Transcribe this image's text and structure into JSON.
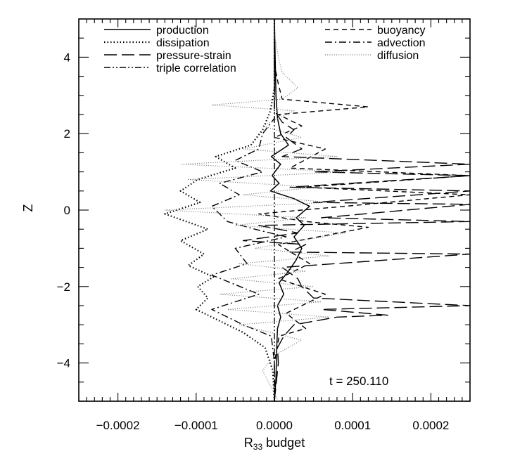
{
  "chart_data": {
    "type": "line",
    "title": "",
    "xlabel": "R",
    "xlabel_subscript": "33",
    "xlabel_suffix": " budget",
    "ylabel": "Z",
    "xlim": [
      -0.00025,
      0.00025
    ],
    "ylim": [
      -5,
      5
    ],
    "xticks": [
      -0.0002,
      -0.0001,
      0.0,
      0.0001,
      0.0002
    ],
    "xtick_labels": [
      "−0.0002",
      "−0.0001",
      "0.0000",
      "0.0001",
      "0.0002"
    ],
    "yticks": [
      -4,
      -2,
      0,
      2,
      4
    ],
    "ytick_labels": [
      "−4",
      "−2",
      "0",
      "2",
      "4"
    ],
    "grid": false,
    "legend_placement": "top",
    "annotation": "t = 250.110",
    "series": [
      {
        "name": "production",
        "dash": "solid",
        "points": [
          [
            0.0,
            -5.0
          ],
          [
            2e-06,
            -4.4
          ],
          [
            3e-06,
            -3.6
          ],
          [
            4e-06,
            -3.1
          ],
          [
            8e-06,
            -2.8
          ],
          [
            4e-06,
            -2.5
          ],
          [
            1.2e-05,
            -2.2
          ],
          [
            6e-06,
            -1.9
          ],
          [
            1.8e-05,
            -1.6
          ],
          [
            2.8e-05,
            -1.3
          ],
          [
            3.5e-05,
            -1.0
          ],
          [
            2.5e-05,
            -0.7
          ],
          [
            3.8e-05,
            -0.4
          ],
          [
            2.8e-05,
            -0.2
          ],
          [
            4.5e-05,
            0.1
          ],
          [
            2.5e-05,
            0.3
          ],
          [
            -5e-06,
            0.5
          ],
          [
            6e-06,
            0.7
          ],
          [
            -3e-06,
            0.9
          ],
          [
            8e-06,
            1.2
          ],
          [
            -4e-06,
            1.4
          ],
          [
            1.8e-05,
            1.7
          ],
          [
            8e-06,
            2.0
          ],
          [
            4e-06,
            2.4
          ],
          [
            2e-06,
            3.0
          ],
          [
            0.0,
            5.0
          ]
        ]
      },
      {
        "name": "dissipation",
        "dash": "dotted",
        "points": [
          [
            0.0,
            -5.0
          ],
          [
            -2e-06,
            -4.2
          ],
          [
            -1.2e-05,
            -3.6
          ],
          [
            -4e-05,
            -3.2
          ],
          [
            -7e-05,
            -2.9
          ],
          [
            -0.0001,
            -2.6
          ],
          [
            -8.5e-05,
            -2.3
          ],
          [
            -9.8e-05,
            -2.0
          ],
          [
            -7.8e-05,
            -1.75
          ],
          [
            -0.00011,
            -1.45
          ],
          [
            -9e-05,
            -1.15
          ],
          [
            -0.00012,
            -0.8
          ],
          [
            -8.5e-05,
            -0.5
          ],
          [
            -0.00014,
            -0.1
          ],
          [
            -9.5e-05,
            0.2
          ],
          [
            -0.00012,
            0.5
          ],
          [
            -9.8e-05,
            0.8
          ],
          [
            -5e-05,
            1.1
          ],
          [
            -7.5e-05,
            1.4
          ],
          [
            -3e-05,
            1.7
          ],
          [
            -1.5e-05,
            2.1
          ],
          [
            -5e-06,
            2.6
          ],
          [
            0.0,
            3.2
          ],
          [
            0.0,
            5.0
          ]
        ]
      },
      {
        "name": "pressure-strain",
        "dash": "longdash",
        "points": [
          [
            0.0,
            -5.0
          ],
          [
            5e-06,
            -4.0
          ],
          [
            4e-06,
            -3.6
          ],
          [
            1.2e-05,
            -3.3
          ],
          [
            2.5e-05,
            -3.0
          ],
          [
            8e-05,
            -2.8
          ],
          [
            0.000145,
            -2.75
          ],
          [
            6e-05,
            -2.6
          ],
          [
            0.00025,
            -2.5
          ],
          [
            5e-05,
            -2.3
          ],
          [
            3.5e-05,
            -2.0
          ],
          [
            3e-05,
            -1.8
          ],
          [
            1e-05,
            -1.5
          ],
          [
            0.00025,
            -1.15
          ],
          [
            2e-05,
            -1.1
          ],
          [
            4e-05,
            -0.9
          ],
          [
            -4e-05,
            -0.8
          ],
          [
            3e-05,
            -0.6
          ],
          [
            -2e-05,
            -0.4
          ],
          [
            0.00025,
            -0.3
          ],
          [
            6e-05,
            -0.2
          ],
          [
            0.00025,
            0.15
          ],
          [
            5e-05,
            0.2
          ],
          [
            0.00025,
            0.5
          ],
          [
            2e-05,
            0.6
          ],
          [
            0.00025,
            0.9
          ],
          [
            5e-05,
            1.0
          ],
          [
            0.00025,
            1.2
          ],
          [
            1e-05,
            1.4
          ],
          [
            3.5e-05,
            1.6
          ],
          [
            1.5e-05,
            1.9
          ],
          [
            2.5e-05,
            2.1
          ],
          [
            1e-05,
            2.3
          ],
          [
            0.0,
            2.6
          ],
          [
            0.0,
            3.5
          ],
          [
            0.0,
            5.0
          ]
        ]
      },
      {
        "name": "triple correlation",
        "dash": "dashdotdot",
        "points": [
          [
            0.0,
            -5.0
          ],
          [
            0.0,
            -3.8
          ],
          [
            0.0,
            -3.0
          ],
          [
            0.0,
            -2.0
          ],
          [
            0.0,
            -1.0
          ],
          [
            0.0,
            0.0
          ],
          [
            0.0,
            1.0
          ],
          [
            0.0,
            2.0
          ],
          [
            0.0,
            3.0
          ],
          [
            0.0,
            4.0
          ],
          [
            0.0,
            5.0
          ]
        ]
      },
      {
        "name": "buoyancy",
        "dash": "shortdash",
        "points": [
          [
            0.0,
            -5.0
          ],
          [
            0.0,
            -4.0
          ],
          [
            6e-06,
            -3.3
          ],
          [
            4e-05,
            -3.1
          ],
          [
            1.5e-05,
            -2.7
          ],
          [
            6.5e-05,
            -2.2
          ],
          [
            5e-06,
            -1.8
          ],
          [
            4.5e-05,
            -1.4
          ],
          [
            5e-06,
            -0.9
          ],
          [
            0.00012,
            -0.45
          ],
          [
            4e-05,
            -0.3
          ],
          [
            -2e-05,
            -0.1
          ],
          [
            9e-05,
            0.1
          ],
          [
            0.00025,
            0.4
          ],
          [
            3.5e-05,
            0.6
          ],
          [
            0.00025,
            0.9
          ],
          [
            2e-05,
            1.1
          ],
          [
            6.5e-05,
            1.6
          ],
          [
            0.0,
            1.9
          ],
          [
            3.5e-05,
            2.2
          ],
          [
            5e-06,
            2.5
          ],
          [
            0.00012,
            2.7
          ],
          [
            1e-05,
            2.9
          ],
          [
            5e-06,
            3.3
          ],
          [
            0.0,
            3.8
          ],
          [
            0.0,
            5.0
          ]
        ]
      },
      {
        "name": "advection",
        "dash": "dashdot",
        "points": [
          [
            0.0,
            -5.0
          ],
          [
            0.0,
            -4.0
          ],
          [
            -4e-06,
            -3.3
          ],
          [
            -4e-05,
            -3.0
          ],
          [
            -8e-05,
            -2.6
          ],
          [
            -2e-05,
            -2.2
          ],
          [
            -8e-05,
            -1.7
          ],
          [
            -3.5e-05,
            -1.4
          ],
          [
            -5e-05,
            -1.0
          ],
          [
            1.5e-05,
            -0.7
          ],
          [
            -2.5e-05,
            -0.5
          ],
          [
            -6e-05,
            -0.3
          ],
          [
            -8e-05,
            0.1
          ],
          [
            -4.5e-05,
            0.4
          ],
          [
            -7e-05,
            0.7
          ],
          [
            -1.5e-05,
            1.0
          ],
          [
            -5e-05,
            1.3
          ],
          [
            -2e-05,
            1.6
          ],
          [
            -1.5e-05,
            2.0
          ],
          [
            0.0,
            2.4
          ],
          [
            0.0,
            3.0
          ],
          [
            0.0,
            5.0
          ]
        ]
      },
      {
        "name": "diffusion",
        "dash": "finedot",
        "points": [
          [
            5e-06,
            -5.0
          ],
          [
            -1.5e-05,
            -4.2
          ],
          [
            0.0,
            -3.8
          ],
          [
            3.5e-05,
            -3.4
          ],
          [
            -4.5e-05,
            -3.0
          ],
          [
            7e-05,
            -2.8
          ],
          [
            -6e-05,
            -2.6
          ],
          [
            6e-05,
            -2.4
          ],
          [
            -7e-05,
            -2.2
          ],
          [
            5e-05,
            -2.0
          ],
          [
            -5.5e-05,
            -1.8
          ],
          [
            4e-05,
            -1.6
          ],
          [
            -4.5e-05,
            -1.4
          ],
          [
            7e-05,
            -1.2
          ],
          [
            -2.5e-05,
            -1.0
          ],
          [
            9e-05,
            -0.6
          ],
          [
            -5e-05,
            -0.4
          ],
          [
            4e-05,
            -0.2
          ],
          [
            -0.00014,
            0.0
          ],
          [
            7e-05,
            0.2
          ],
          [
            -4e-05,
            0.4
          ],
          [
            5.5e-05,
            0.6
          ],
          [
            -0.00011,
            0.8
          ],
          [
            9e-05,
            1.0
          ],
          [
            -0.00012,
            1.2
          ],
          [
            8e-05,
            1.4
          ],
          [
            -4e-05,
            1.6
          ],
          [
            3.5e-05,
            1.9
          ],
          [
            -1.5e-05,
            2.2
          ],
          [
            2.5e-05,
            2.6
          ],
          [
            -8e-05,
            2.75
          ],
          [
            1e-05,
            2.9
          ],
          [
            3e-05,
            3.2
          ],
          [
            1e-05,
            3.6
          ],
          [
            5e-06,
            4.0
          ],
          [
            0.0,
            4.6
          ],
          [
            0.0,
            5.0
          ]
        ]
      }
    ]
  }
}
